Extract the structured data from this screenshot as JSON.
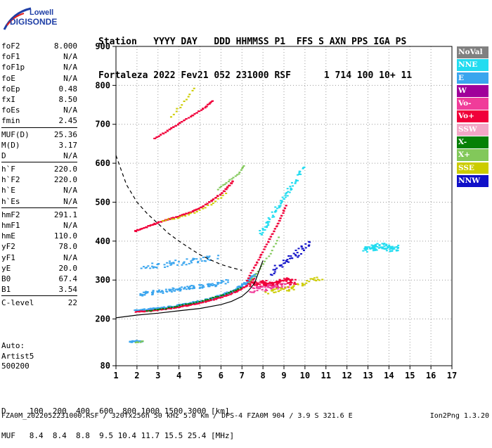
{
  "logo": {
    "line1": "Lowell",
    "line2": "DIGISONDE",
    "color": "#1f3fa6"
  },
  "header": {
    "row1": "Station   YYYY DAY   DDD HHMMSS P1  FFS S AXN PPS IGA PS",
    "row2": "Fortaleza 2022 Fev21 052 231000 RSF      1 714 100 10+ 11"
  },
  "params": [
    [
      {
        "k": "foF2",
        "v": "8.000"
      },
      {
        "k": "foF1",
        "v": "N/A"
      },
      {
        "k": "foF1p",
        "v": "N/A"
      },
      {
        "k": "foE",
        "v": "N/A"
      },
      {
        "k": "foEp",
        "v": "0.48"
      },
      {
        "k": "fxI",
        "v": "8.50"
      },
      {
        "k": "foEs",
        "v": "N/A"
      },
      {
        "k": "fmin",
        "v": "2.45"
      }
    ],
    [
      {
        "k": "MUF(D)",
        "v": "25.36"
      },
      {
        "k": "M(D)",
        "v": "3.17"
      },
      {
        "k": "D",
        "v": "N/A"
      }
    ],
    [
      {
        "k": "h`F",
        "v": "220.0"
      },
      {
        "k": "h`F2",
        "v": "220.0"
      },
      {
        "k": "h`E",
        "v": "N/A"
      },
      {
        "k": "h`Es",
        "v": "N/A"
      }
    ],
    [
      {
        "k": "hmF2",
        "v": "291.1"
      },
      {
        "k": "hmF1",
        "v": "N/A"
      },
      {
        "k": "hmE",
        "v": "110.0"
      },
      {
        "k": "yF2",
        "v": "78.0"
      },
      {
        "k": "yF1",
        "v": "N/A"
      },
      {
        "k": "yE",
        "v": "20.0"
      },
      {
        "k": "B0",
        "v": "67.4"
      },
      {
        "k": "B1",
        "v": "3.54"
      }
    ],
    [
      {
        "k": "C-level",
        "v": "22"
      }
    ]
  ],
  "auto": {
    "line1": "Auto:",
    "line2": "Artist5",
    "line3": "500200"
  },
  "legend": [
    {
      "label": "NoVal",
      "color": "#808080"
    },
    {
      "label": "NNE",
      "color": "#22dcf0"
    },
    {
      "label": "E",
      "color": "#3aa5ee"
    },
    {
      "label": "W",
      "color": "#a0009a"
    },
    {
      "label": "Vo-",
      "color": "#f03c9a"
    },
    {
      "label": "Vo+",
      "color": "#f0003a"
    },
    {
      "label": "SSW",
      "color": "#f3a6c6"
    },
    {
      "label": "X-",
      "color": "#058005"
    },
    {
      "label": "X+",
      "color": "#82c85a"
    },
    {
      "label": "SSE",
      "color": "#cccc00"
    },
    {
      "label": "NNW",
      "color": "#1010c8"
    }
  ],
  "footer": {
    "line1": "D     100  200  400  600  800 1000 1500 3000 [km]",
    "line2": "MUF   8.4  8.4  8.8  9.5 10.4 11.7 15.5 25.4 [MHz]"
  },
  "footnote": "FZA0M_2022052231000.RSF / 320fx256h 50 kHz 5.0 km / DPS-4 FZA0M 904 / 3.9 S 321.6 E",
  "footver": "Ion2Png 1.3.20",
  "chart_data": {
    "type": "scatter",
    "title": "",
    "xlabel": "",
    "ylabel": "",
    "xlim": [
      1,
      17
    ],
    "ylim": [
      80,
      900
    ],
    "xticks": [
      1,
      2,
      3,
      4,
      5,
      6,
      7,
      8,
      9,
      10,
      11,
      12,
      13,
      14,
      15,
      16,
      17
    ],
    "yticks": [
      80,
      200,
      300,
      400,
      500,
      600,
      700,
      800,
      900
    ],
    "grid": true,
    "gridstyle": "dotted",
    "curves": [
      {
        "name": "",
        "style": "dashed",
        "color": "#000000",
        "x": [
          1.0,
          1.5,
          2.0,
          2.5,
          3.0,
          3.5,
          4.0,
          4.5,
          5.0,
          5.5,
          6.0,
          6.5,
          7.0
        ],
        "y": [
          620,
          545,
          500,
          470,
          445,
          420,
          400,
          382,
          365,
          352,
          340,
          332,
          325
        ]
      },
      {
        "name": "",
        "style": "solid",
        "color": "#000000",
        "x": [
          1.0,
          2.0,
          3.0,
          4.0,
          5.0,
          6.0,
          6.5,
          7.0,
          7.3,
          7.6,
          8.0
        ],
        "y": [
          203,
          210,
          215,
          221,
          227,
          237,
          245,
          258,
          272,
          292,
          350
        ]
      }
    ],
    "traces": [
      {
        "color": "#3aa5ee",
        "spread": 0.16,
        "density": 5,
        "x": [
          1.9,
          2.4,
          3.0,
          3.6,
          4.2,
          4.8,
          5.4,
          6.0,
          6.6,
          7.1,
          7.6
        ],
        "y": [
          222,
          225,
          228,
          232,
          238,
          244,
          252,
          262,
          275,
          292,
          318
        ]
      },
      {
        "color": "#f0003a",
        "spread": 0.06,
        "density": 2,
        "x": [
          1.9,
          2.5,
          3.1,
          3.7,
          4.3,
          4.9,
          5.5,
          6.1,
          6.7,
          7.2,
          7.6
        ],
        "y": [
          220,
          222,
          226,
          230,
          236,
          242,
          250,
          260,
          272,
          288,
          310
        ]
      },
      {
        "color": "#058005",
        "spread": 0.05,
        "density": 1,
        "x": [
          2.4,
          3.2,
          4.0,
          4.8,
          5.6,
          6.3,
          7.0
        ],
        "y": [
          222,
          228,
          236,
          245,
          256,
          268,
          285
        ]
      },
      {
        "color": "#3aa5ee",
        "spread": 0.25,
        "density": 3,
        "x": [
          2.1,
          2.8,
          3.5,
          4.2,
          4.9,
          5.6,
          6.3
        ],
        "y": [
          265,
          270,
          275,
          280,
          285,
          290,
          300
        ]
      },
      {
        "color": "#3aa5ee",
        "spread": 0.35,
        "density": 2,
        "x": [
          2.3,
          3.0,
          3.7,
          4.4,
          5.1,
          5.8
        ],
        "y": [
          335,
          340,
          345,
          350,
          355,
          362
        ]
      },
      {
        "color": "#f0003a",
        "spread": 0.06,
        "density": 3,
        "x": [
          1.9,
          2.5,
          3.1,
          3.7,
          4.3,
          4.9,
          5.5,
          6.1,
          6.6
        ],
        "y": [
          428,
          440,
          452,
          462,
          472,
          485,
          505,
          530,
          560
        ]
      },
      {
        "color": "#cccc00",
        "spread": 0.07,
        "density": 1,
        "x": [
          3.2,
          4.0,
          4.8,
          5.6,
          6.3
        ],
        "y": [
          455,
          462,
          478,
          500,
          528
        ]
      },
      {
        "color": "#82c85a",
        "spread": 0.05,
        "density": 1,
        "x": [
          5.8,
          6.3,
          6.8,
          7.1
        ],
        "y": [
          535,
          555,
          575,
          600
        ]
      },
      {
        "color": "#f0003a",
        "spread": 0.05,
        "density": 2,
        "x": [
          2.8,
          3.4,
          4.0,
          4.6,
          5.2,
          5.6
        ],
        "y": [
          665,
          685,
          705,
          725,
          745,
          765
        ]
      },
      {
        "color": "#cccc00",
        "spread": 0.1,
        "density": 1,
        "x": [
          3.6,
          4.2,
          4.8
        ],
        "y": [
          720,
          760,
          800
        ]
      },
      {
        "color": "#f0003a",
        "spread": 0.05,
        "density": 2,
        "x": [
          7.2,
          7.6,
          8.0,
          8.4,
          8.8,
          9.1
        ],
        "y": [
          300,
          340,
          380,
          420,
          460,
          500
        ]
      },
      {
        "color": "#82c85a",
        "spread": 0.05,
        "density": 1,
        "x": [
          7.3,
          7.8,
          8.3,
          8.8
        ],
        "y": [
          295,
          330,
          370,
          420
        ]
      },
      {
        "color": "#f0003a",
        "spread": 0.35,
        "density": 5,
        "x": [
          7.5,
          8.0,
          8.5,
          9.0,
          9.5
        ],
        "y": [
          290,
          295,
          290,
          300,
          295
        ]
      },
      {
        "color": "#f03c9a",
        "spread": 0.35,
        "density": 3,
        "x": [
          7.4,
          8.0,
          8.6,
          9.2
        ],
        "y": [
          275,
          280,
          285,
          290
        ]
      },
      {
        "color": "#1010c8",
        "spread": 0.3,
        "density": 2,
        "x": [
          8.3,
          8.8,
          9.3,
          9.8,
          10.2
        ],
        "y": [
          320,
          340,
          360,
          380,
          400
        ]
      },
      {
        "color": "#cccc00",
        "spread": 0.3,
        "density": 2,
        "x": [
          8.2,
          8.8,
          9.4,
          10.0,
          10.8
        ],
        "y": [
          270,
          275,
          280,
          300,
          305
        ]
      },
      {
        "color": "#22dcf0",
        "spread": 0.2,
        "density": 3,
        "x": [
          7.8,
          8.3,
          8.8,
          9.3,
          10.0
        ],
        "y": [
          420,
          460,
          500,
          540,
          600
        ]
      },
      {
        "color": "#22dcf0",
        "spread": 0.35,
        "density": 4,
        "x": [
          12.8,
          13.2,
          13.6,
          14.0,
          14.4
        ],
        "y": [
          380,
          385,
          390,
          380,
          385
        ]
      },
      {
        "color": "#3aa5ee",
        "spread": 0.12,
        "density": 2,
        "x": [
          1.6,
          1.9,
          2.2
        ],
        "y": [
          142,
          145,
          146
        ]
      },
      {
        "color": "#82c85a",
        "spread": 0.08,
        "density": 1,
        "x": [
          1.9,
          2.3
        ],
        "y": [
          142,
          145
        ]
      }
    ]
  }
}
